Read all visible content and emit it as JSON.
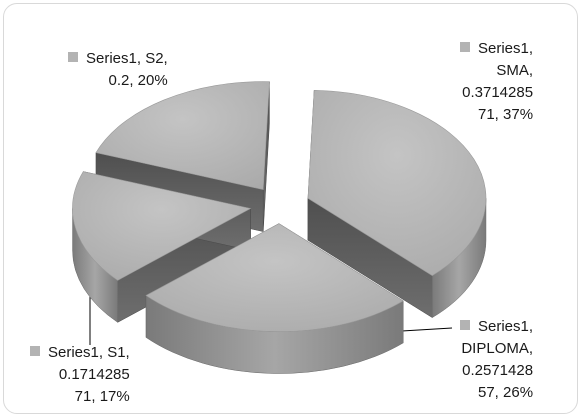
{
  "chart_data": {
    "type": "pie",
    "series_name": "Series1",
    "slices": [
      {
        "category": "SMA",
        "value": 0.371428571,
        "value_text": "0.371428571",
        "percent": "37%",
        "label_lines": [
          "Series1,",
          "SMA,",
          "0.3714285",
          "71, 37%"
        ]
      },
      {
        "category": "DIPLOMA",
        "value": 0.257142857,
        "value_text": "0.257142857",
        "percent": "26%",
        "label_lines": [
          "Series1,",
          "DIPLOMA,",
          "0.2571428",
          "57, 26%"
        ]
      },
      {
        "category": "S1",
        "value": 0.171428571,
        "value_text": "0.171428571",
        "percent": "17%",
        "label_lines": [
          "Series1, S1,",
          "0.1714285",
          "71, 17%"
        ]
      },
      {
        "category": "S2",
        "value": 0.2,
        "value_text": "0.2",
        "percent": "20%",
        "label_lines": [
          "Series1, S2,",
          "0.2, 20%"
        ]
      }
    ],
    "colors": {
      "top": "#b8b8b8",
      "side_dark": "#5e5e5e",
      "side_light": "#8c8c8c",
      "swatch": "#b3b3b3"
    },
    "exploded": true,
    "three_d": true
  }
}
